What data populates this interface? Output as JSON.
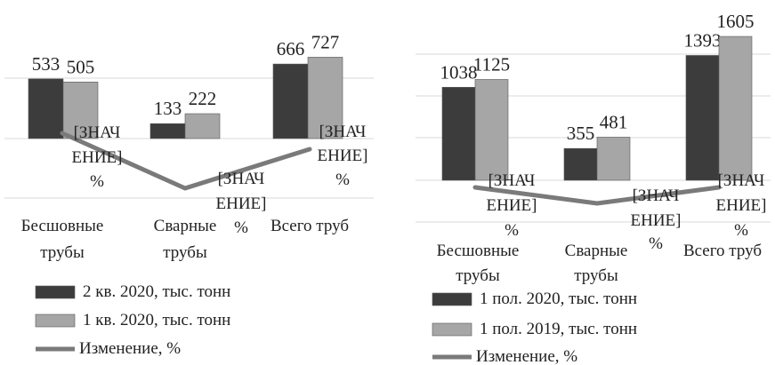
{
  "colors": {
    "series_current": "#3c3c3c",
    "series_previous": "#a6a6a6",
    "change_line": "#7a7a7a",
    "grid": "#d9d9d9"
  },
  "chart_data": [
    {
      "type": "bar",
      "categories": [
        [
          "Бесшовные",
          "трубы"
        ],
        [
          "Сварные",
          "трубы"
        ],
        [
          "Всего труб"
        ]
      ],
      "series": [
        {
          "name": "2 кв. 2020, тыс. тонн",
          "values": [
            533,
            133,
            666
          ],
          "labels": [
            "533",
            "133",
            "666"
          ],
          "color_key": "series_current"
        },
        {
          "name": "1 кв. 2020, тыс. тонн",
          "values": [
            505,
            222,
            727
          ],
          "labels": [
            "505",
            "222",
            "727"
          ],
          "color_key": "series_previous"
        }
      ],
      "line_series": {
        "name": "Изменение, %",
        "point_labels": [
          [
            "[ЗНАЧ",
            "ЕНИЕ]",
            "%"
          ],
          [
            "[ЗНАЧ",
            "ЕНИЕ]",
            "%"
          ],
          [
            "[ЗНАЧ",
            "ЕНИЕ]",
            "%"
          ]
        ]
      },
      "ylim": [
        0,
        800
      ],
      "grid": true,
      "legend_position": "bottom"
    },
    {
      "type": "bar",
      "categories": [
        [
          "Бесшовные",
          "трубы"
        ],
        [
          "Сварные",
          "трубы"
        ],
        [
          "Всего труб"
        ]
      ],
      "series": [
        {
          "name": "1 пол. 2020, тыс. тонн",
          "values": [
            1038,
            355,
            1393
          ],
          "labels": [
            "1038",
            "355",
            "1393"
          ],
          "color_key": "series_current"
        },
        {
          "name": "1 пол. 2019, тыс. тонн",
          "values": [
            1125,
            481,
            1605
          ],
          "labels": [
            "1125",
            "481",
            "1605"
          ],
          "color_key": "series_previous"
        }
      ],
      "line_series": {
        "name": "Изменение, %",
        "point_labels": [
          [
            "[ЗНАЧ",
            "ЕНИЕ]",
            "%"
          ],
          [
            "[ЗНАЧ",
            "ЕНИЕ]",
            "%"
          ],
          [
            "[ЗНАЧ",
            "ЕНИЕ]",
            "%"
          ]
        ]
      },
      "ylim": [
        0,
        1700
      ],
      "grid": true,
      "legend_position": "bottom"
    }
  ]
}
